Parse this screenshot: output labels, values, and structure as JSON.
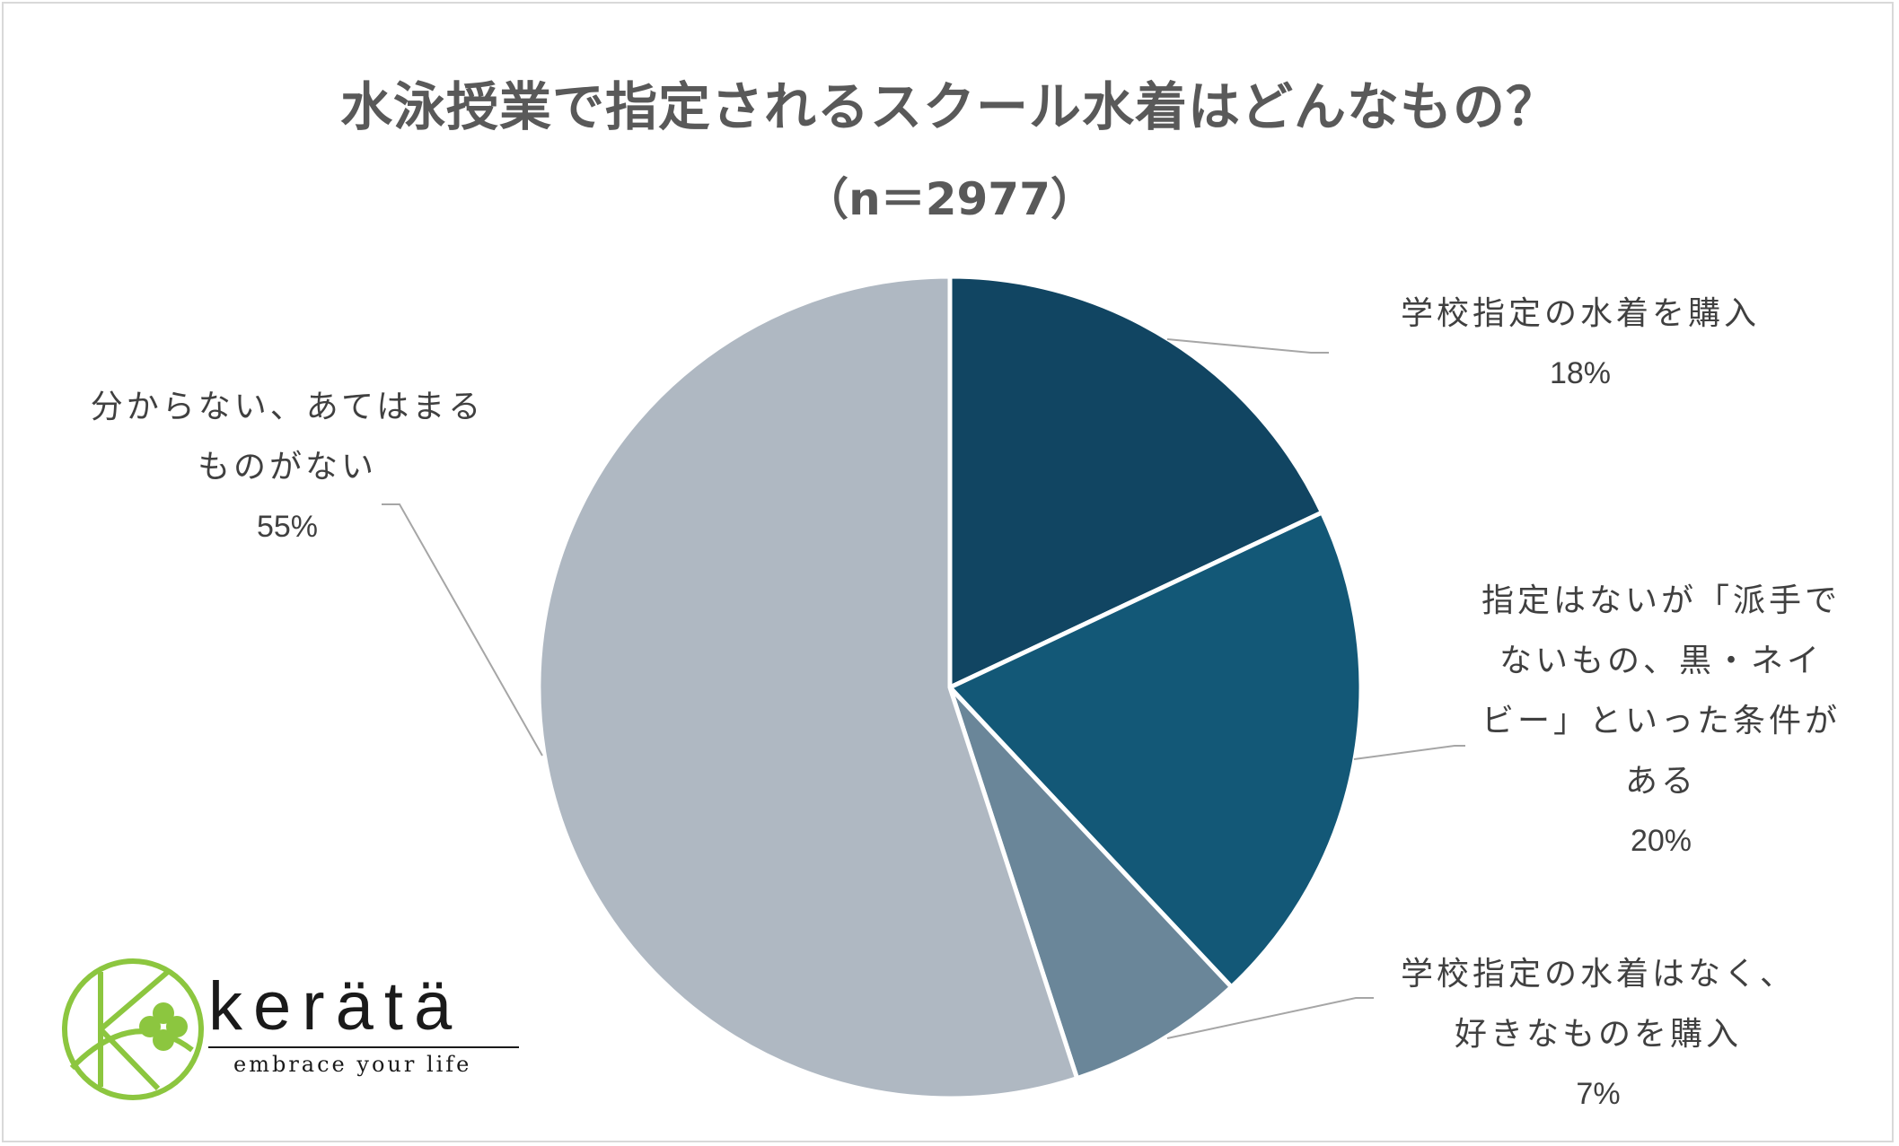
{
  "chart_data": {
    "type": "pie",
    "title": "水泳授業で指定されるスクール水着はどんなもの？",
    "subtitle": "（n＝2977）",
    "slices": [
      {
        "label": "学校指定の水着を購入",
        "value": 18,
        "display": "18%",
        "color": "#114562"
      },
      {
        "label": "指定はないが「派手でないもの、黒・ネイビー」といった条件がある",
        "value": 20,
        "display": "20%",
        "color": "#135877"
      },
      {
        "label": "学校指定の水着はなく、好きなものを購入",
        "value": 7,
        "display": "7%",
        "color": "#6a8699"
      },
      {
        "label": "分からない、あてはまるものがない",
        "value": 55,
        "display": "55%",
        "color": "#afb8c2"
      }
    ],
    "labels": [
      {
        "lines": [
          "学校指定の水着を購入"
        ]
      },
      {
        "lines": [
          "指定はないが「派手で",
          "ないもの、黒・ネイ",
          "ビー」といった条件が",
          "ある"
        ]
      },
      {
        "lines": [
          "学校指定の水着はなく、",
          "好きなものを購入"
        ]
      },
      {
        "lines": [
          "分からない、あてはまる",
          "ものがない"
        ]
      }
    ],
    "legend": "none"
  },
  "logo": {
    "brand": "kerätä",
    "tagline": "embrace your life",
    "color": "#8cc63f"
  }
}
